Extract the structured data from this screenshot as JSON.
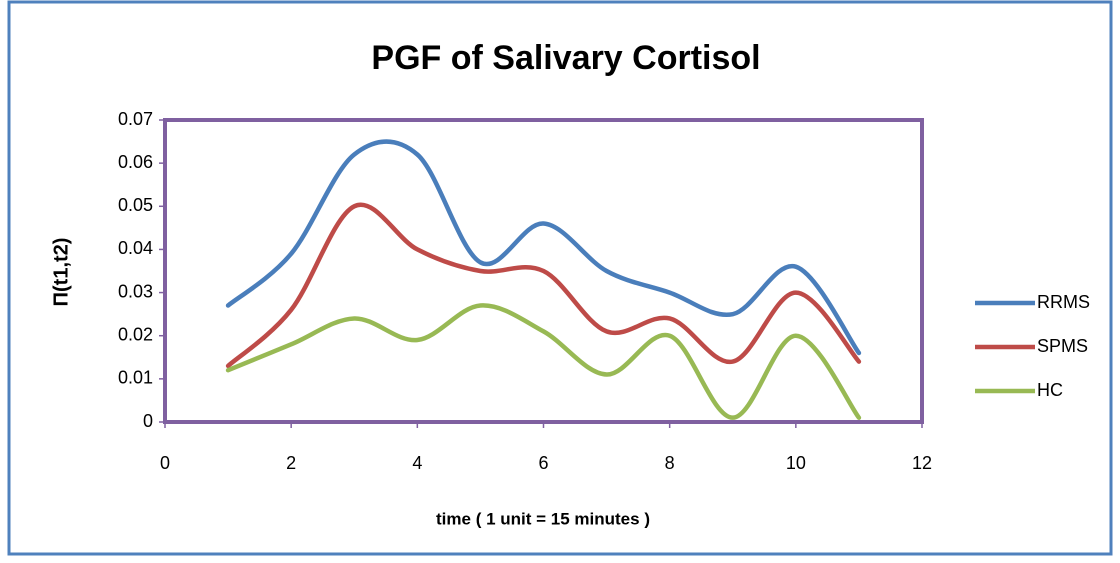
{
  "chart_data": {
    "type": "line",
    "title": "PGF of Salivary Cortisol",
    "x_label": "time  ( 1 unit = 15 minutes )",
    "y_label": "Π(t1,t2)",
    "x": [
      1,
      2,
      3,
      4,
      5,
      6,
      7,
      8,
      9,
      10,
      11
    ],
    "series": [
      {
        "name": "RRMS",
        "color": "#4A7EBB",
        "values": [
          0.027,
          0.039,
          0.062,
          0.062,
          0.037,
          0.046,
          0.035,
          0.03,
          0.025,
          0.036,
          0.016
        ]
      },
      {
        "name": "SPMS",
        "color": "#BE4B48",
        "values": [
          0.013,
          0.026,
          0.05,
          0.04,
          0.035,
          0.035,
          0.021,
          0.024,
          0.014,
          0.03,
          0.014
        ]
      },
      {
        "name": "HC",
        "color": "#98B954",
        "values": [
          0.012,
          0.018,
          0.024,
          0.019,
          0.027,
          0.021,
          0.011,
          0.02,
          0.001,
          0.02,
          0.001
        ]
      }
    ],
    "xlim": [
      0,
      12
    ],
    "xticks": [
      0,
      2,
      4,
      6,
      8,
      10,
      12
    ],
    "ylim": [
      0,
      0.07
    ],
    "yticks": [
      0,
      0.01,
      0.02,
      0.03,
      0.04,
      0.05,
      0.06,
      0.07
    ],
    "smooth": true,
    "legend": "right"
  }
}
